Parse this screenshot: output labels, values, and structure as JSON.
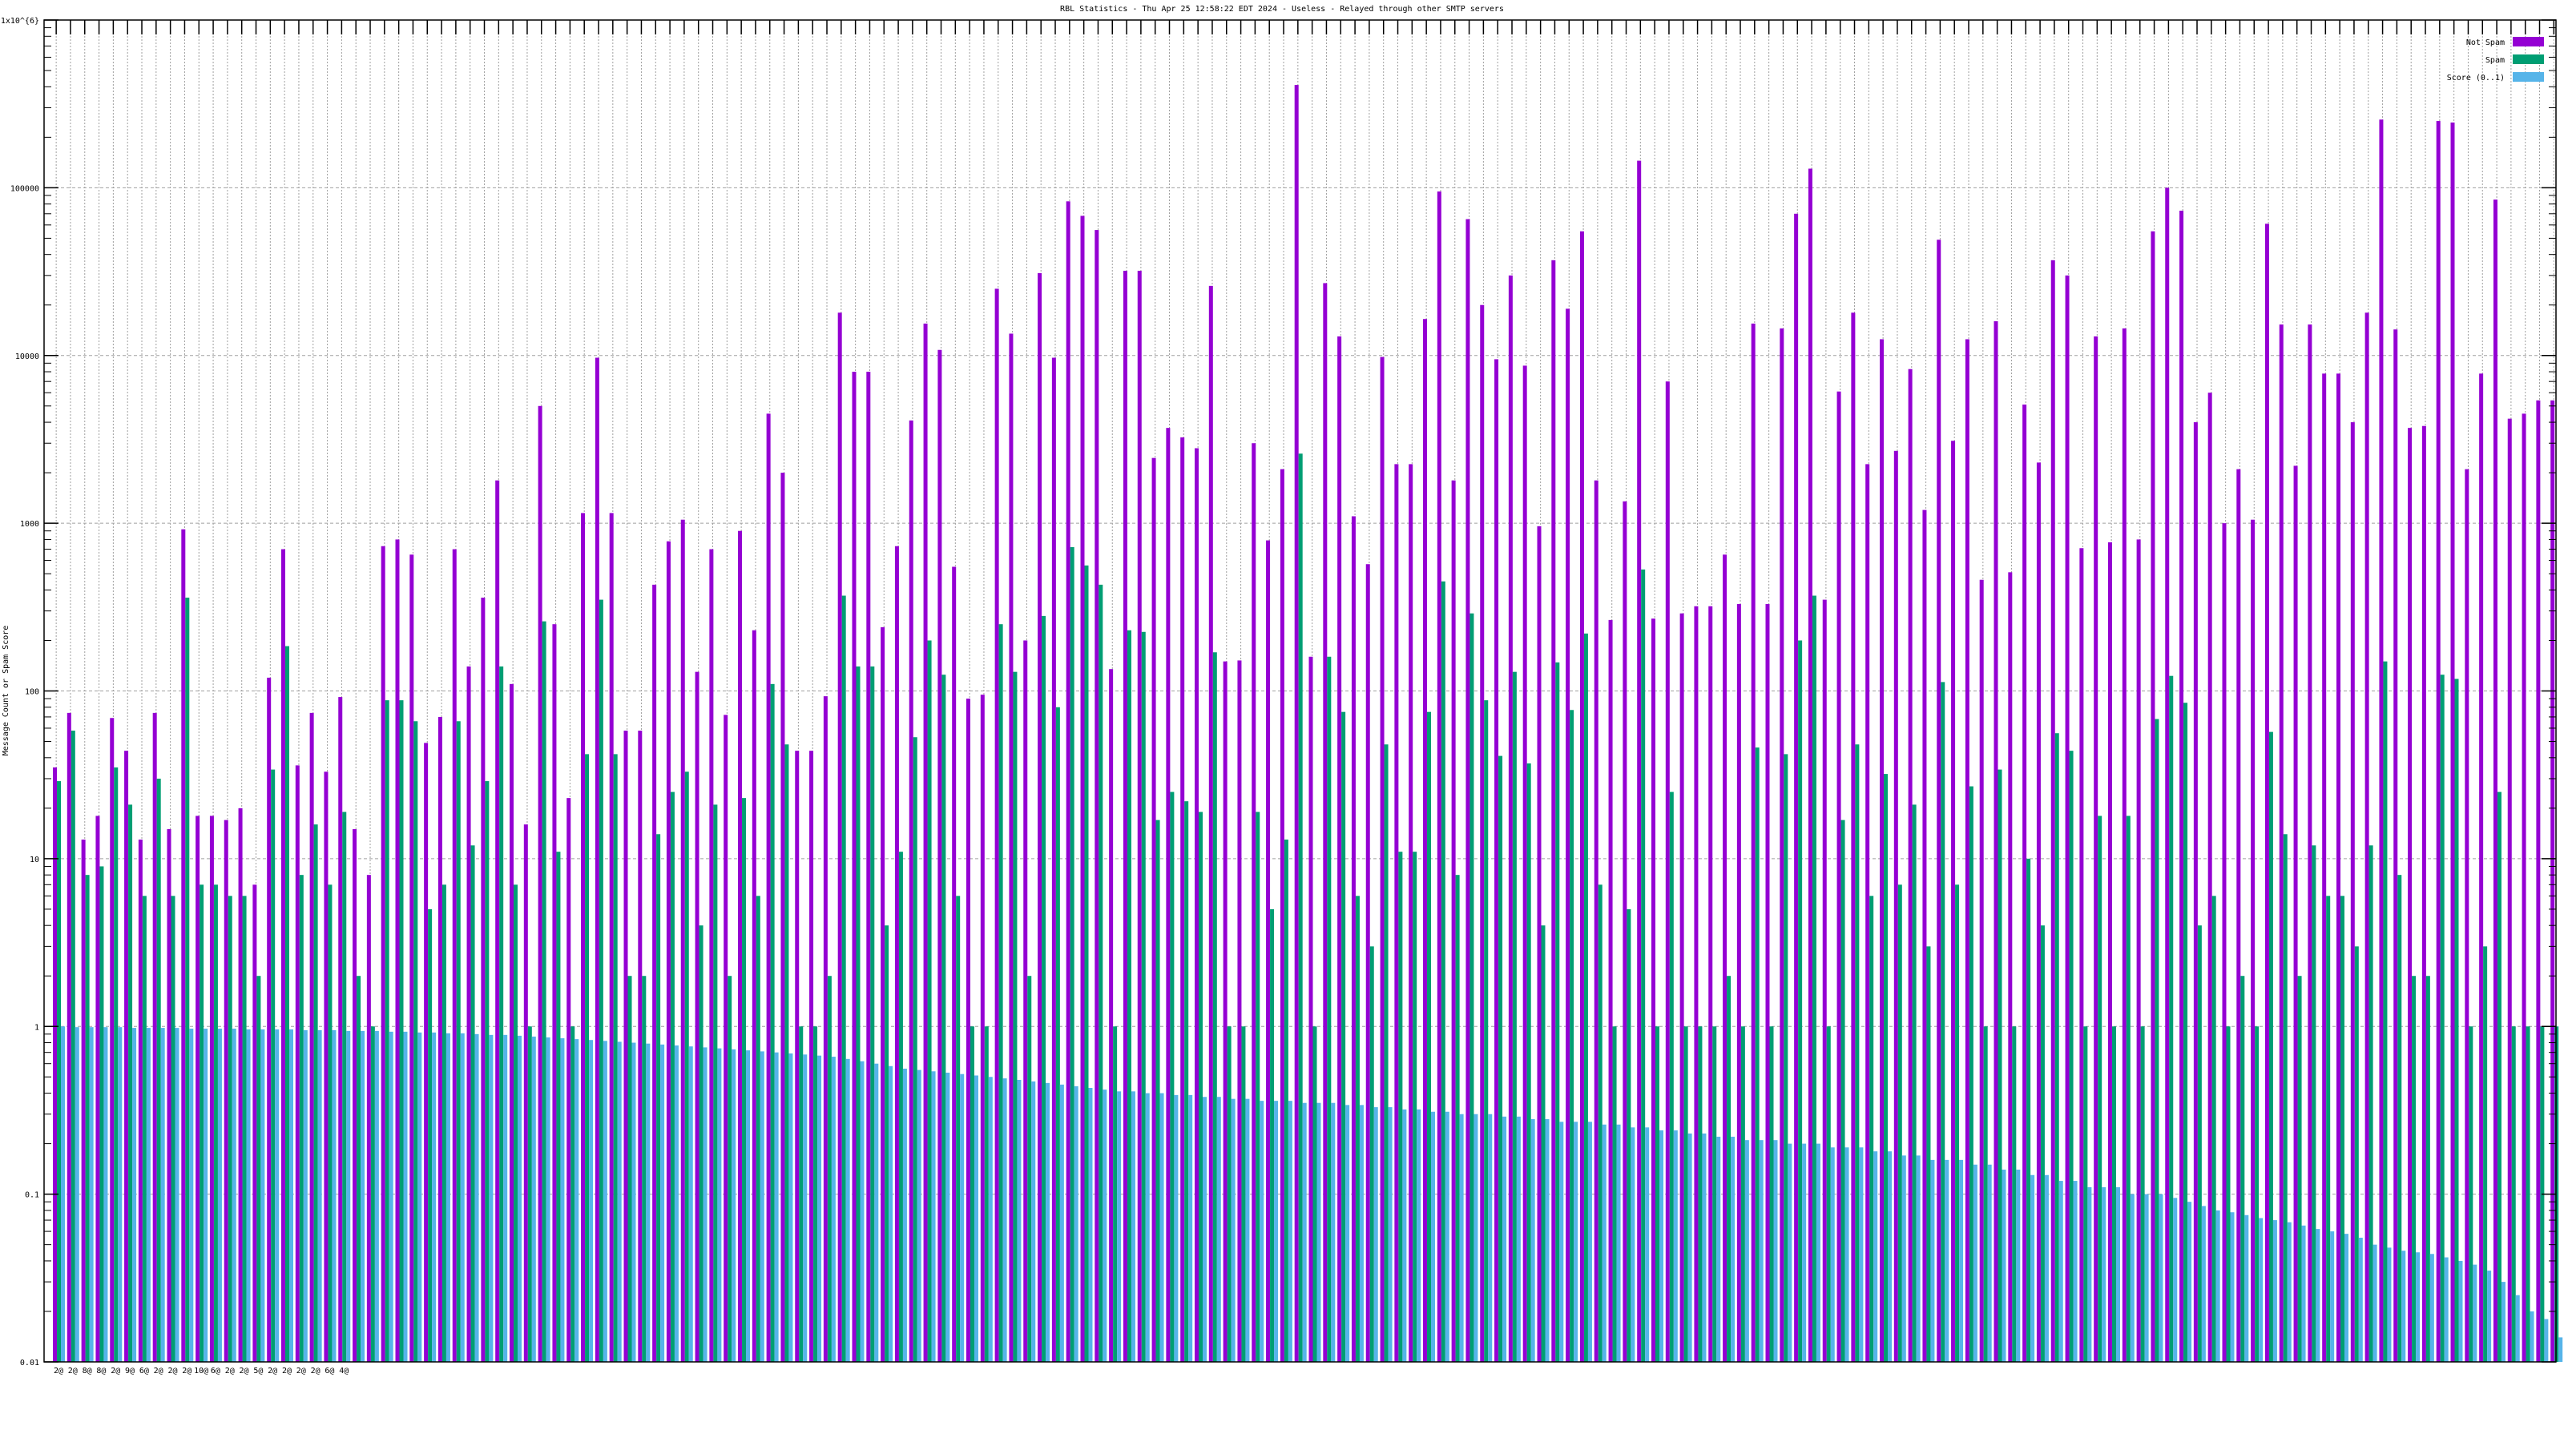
{
  "chart_data": {
    "type": "bar",
    "title": "RBL Statistics - Thu Apr 25 12:58:22 EDT 2024 - Useless - Relayed through other SMTP servers",
    "xlabel": "",
    "ylabel": "Message Count or Spam Score",
    "yscale": "log",
    "ylim": [
      0.01,
      1000000
    ],
    "yticks": [
      "0.01",
      "0.1",
      "1",
      "10",
      "100",
      "1000",
      "10000",
      "100000",
      "1x10^{6}"
    ],
    "grid": true,
    "legend_position": "top-right",
    "category_labels": [
      "2@",
      "2@",
      "8@",
      "8@",
      "2@",
      "9@",
      "6@",
      "2@",
      "2@",
      "2@",
      "10@",
      "6@",
      "2@",
      "2@",
      "5@",
      "2@",
      "2@",
      "2@",
      "2@",
      "6@",
      "4@"
    ],
    "series": [
      {
        "name": "Not Spam",
        "color": "#9400d3",
        "values": [
          35,
          74,
          13,
          18,
          69,
          44,
          13,
          74,
          15,
          920,
          18,
          18,
          17,
          20,
          7,
          120,
          700,
          36,
          74,
          33,
          92,
          15,
          8,
          730,
          800,
          650,
          49,
          70,
          700,
          140,
          360,
          1800,
          110,
          16,
          5000,
          250,
          23,
          1150,
          9700,
          1150,
          58,
          58,
          430,
          780,
          1050,
          130,
          700,
          72,
          900,
          230,
          4500,
          2000,
          44,
          44,
          93,
          18000,
          8000,
          8000,
          240,
          730,
          4100,
          15500,
          10800,
          550,
          90,
          95,
          25000,
          13500,
          200,
          31000,
          9700,
          83000,
          68000,
          56000,
          135,
          32000,
          32000,
          2450,
          3700,
          3250,
          2800,
          26000,
          150,
          152,
          3000,
          790,
          2100,
          410000,
          160,
          27000,
          13000,
          1100,
          570,
          9800,
          2250,
          2250,
          16500,
          95000,
          1800,
          65000,
          20000,
          9500,
          30000,
          8700,
          960,
          37000,
          19000,
          55000,
          1800,
          265,
          1350,
          145000,
          270,
          7000,
          290,
          320,
          320,
          650,
          330,
          15500,
          330,
          14500,
          70000,
          130000,
          350,
          6100,
          18000,
          2250,
          12500,
          2700,
          8300,
          1200,
          49000,
          3100,
          12500,
          460,
          16000,
          510,
          5100,
          2300,
          37000,
          30000,
          710,
          13000,
          770,
          14500,
          800,
          55000,
          100000,
          73000,
          4000,
          6000,
          1000,
          2100,
          1050,
          61000,
          15300,
          2200,
          15300,
          7800,
          7800,
          4000,
          18000,
          255000,
          14300,
          3700,
          3800,
          250000,
          245000,
          2100,
          7800,
          85000,
          4200,
          4500,
          5400,
          5400
        ]
      },
      {
        "name": "Spam",
        "color": "#009e73",
        "values": [
          29,
          58,
          8,
          9,
          35,
          21,
          6,
          30,
          6,
          360,
          7,
          7,
          6,
          6,
          2,
          34,
          185,
          8,
          16,
          7,
          19,
          2,
          1,
          88,
          88,
          66,
          5,
          7,
          66,
          12,
          29,
          140,
          7,
          1,
          260,
          11,
          1,
          42,
          350,
          42,
          2,
          2,
          14,
          25,
          33,
          4,
          21,
          2,
          23,
          6,
          110,
          48,
          1,
          1,
          2,
          370,
          140,
          140,
          4,
          11,
          53,
          200,
          125,
          6,
          1,
          1,
          250,
          130,
          2,
          280,
          80,
          720,
          560,
          430,
          1,
          230,
          225,
          17,
          25,
          22,
          19,
          170,
          1,
          1,
          19,
          5,
          13,
          2600,
          1,
          160,
          75,
          6,
          3,
          48,
          11,
          11,
          75,
          450,
          8,
          290,
          88,
          41,
          130,
          37,
          4,
          148,
          77,
          220,
          7,
          1,
          5,
          530,
          1,
          25,
          1,
          1,
          1,
          2,
          1,
          46,
          1,
          42,
          200,
          370,
          1,
          17,
          48,
          6,
          32,
          7,
          21,
          3,
          113,
          7,
          27,
          1,
          34,
          1,
          10,
          4,
          56,
          44,
          1,
          18,
          1,
          18,
          1,
          68,
          123,
          85,
          4,
          6,
          1,
          2,
          1,
          57,
          14,
          2,
          12,
          6,
          6,
          3,
          12,
          150,
          8,
          2,
          2,
          125,
          118,
          1,
          3,
          25,
          1,
          1,
          1,
          1
        ]
      },
      {
        "name": "Score (0..1)",
        "color": "#56b4e9",
        "values": [
          1.0,
          0.99,
          0.99,
          0.99,
          0.99,
          0.98,
          0.98,
          0.98,
          0.98,
          0.97,
          0.97,
          0.97,
          0.97,
          0.96,
          0.96,
          0.96,
          0.96,
          0.95,
          0.95,
          0.95,
          0.94,
          0.94,
          0.94,
          0.93,
          0.93,
          0.92,
          0.92,
          0.91,
          0.91,
          0.9,
          0.89,
          0.89,
          0.88,
          0.87,
          0.86,
          0.85,
          0.84,
          0.83,
          0.82,
          0.81,
          0.8,
          0.79,
          0.78,
          0.77,
          0.76,
          0.75,
          0.74,
          0.73,
          0.72,
          0.71,
          0.7,
          0.69,
          0.68,
          0.67,
          0.66,
          0.64,
          0.62,
          0.6,
          0.58,
          0.56,
          0.55,
          0.54,
          0.53,
          0.52,
          0.51,
          0.5,
          0.49,
          0.48,
          0.47,
          0.46,
          0.45,
          0.44,
          0.43,
          0.42,
          0.41,
          0.41,
          0.4,
          0.4,
          0.39,
          0.39,
          0.38,
          0.38,
          0.37,
          0.37,
          0.36,
          0.36,
          0.36,
          0.35,
          0.35,
          0.35,
          0.34,
          0.34,
          0.33,
          0.33,
          0.32,
          0.32,
          0.31,
          0.31,
          0.3,
          0.3,
          0.3,
          0.29,
          0.29,
          0.28,
          0.28,
          0.27,
          0.27,
          0.27,
          0.26,
          0.26,
          0.25,
          0.25,
          0.24,
          0.24,
          0.23,
          0.23,
          0.22,
          0.22,
          0.21,
          0.21,
          0.21,
          0.2,
          0.2,
          0.2,
          0.19,
          0.19,
          0.19,
          0.18,
          0.18,
          0.17,
          0.17,
          0.16,
          0.16,
          0.16,
          0.15,
          0.15,
          0.14,
          0.14,
          0.13,
          0.13,
          0.12,
          0.12,
          0.11,
          0.11,
          0.11,
          0.1,
          0.1,
          0.1,
          0.095,
          0.09,
          0.085,
          0.08,
          0.078,
          0.075,
          0.072,
          0.07,
          0.068,
          0.065,
          0.062,
          0.06,
          0.058,
          0.055,
          0.05,
          0.048,
          0.046,
          0.045,
          0.044,
          0.042,
          0.04,
          0.038,
          0.035,
          0.03,
          0.025,
          0.02,
          0.018,
          0.014,
          0.015
        ]
      }
    ]
  }
}
